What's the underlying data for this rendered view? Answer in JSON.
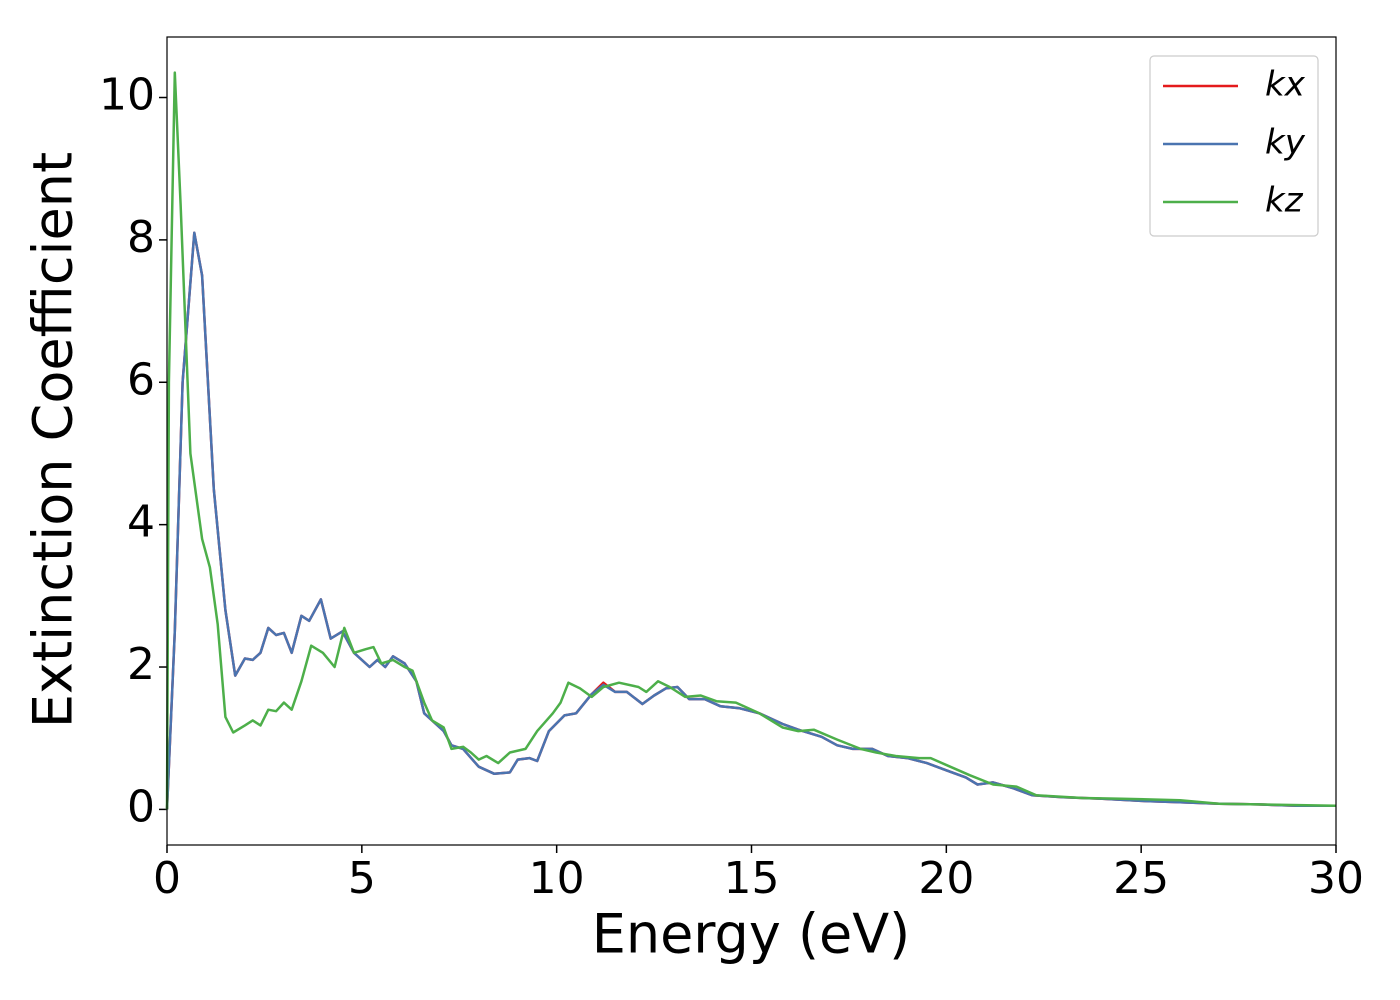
{
  "chart_data": {
    "type": "line",
    "xlabel": "Energy (eV)",
    "ylabel": "Extinction Coefficient",
    "xlim": [
      0,
      30
    ],
    "ylim": [
      -0.5,
      10.85
    ],
    "xticks": [
      0,
      5,
      10,
      15,
      20,
      25,
      30
    ],
    "yticks": [
      0,
      2,
      4,
      6,
      8,
      10
    ],
    "legend": "upper right",
    "series": [
      {
        "name": "kx",
        "color": "#e41a1c",
        "x": [
          0,
          0.2,
          0.4,
          0.7,
          0.9,
          1.2,
          1.5,
          1.75,
          2.0,
          2.2,
          2.4,
          2.6,
          2.8,
          3.0,
          3.2,
          3.45,
          3.65,
          3.95,
          4.2,
          4.5,
          4.8,
          5.2,
          5.4,
          5.6,
          5.8,
          6.1,
          6.4,
          6.6,
          6.9,
          7.1,
          7.3,
          7.6,
          8.0,
          8.4,
          8.8,
          9.0,
          9.3,
          9.5,
          9.8,
          10.2,
          10.5,
          10.9,
          11.2,
          11.5,
          11.8,
          12.2,
          12.5,
          12.8,
          13.1,
          13.4,
          13.8,
          14.2,
          14.7,
          15.2,
          15.8,
          16.2,
          16.8,
          17.2,
          17.6,
          18.1,
          18.5,
          19.0,
          19.5,
          20.0,
          20.5,
          20.8,
          21.2,
          21.7,
          22.2,
          23,
          24,
          25,
          26,
          27,
          28,
          29,
          30
        ],
        "values": [
          0,
          2.5,
          6,
          8.1,
          7.5,
          4.5,
          2.8,
          1.88,
          2.12,
          2.1,
          2.2,
          2.55,
          2.45,
          2.48,
          2.2,
          2.72,
          2.65,
          2.95,
          2.4,
          2.5,
          2.2,
          2.0,
          2.1,
          2.0,
          2.15,
          2.05,
          1.8,
          1.35,
          1.2,
          1.1,
          0.9,
          0.85,
          0.6,
          0.5,
          0.52,
          0.7,
          0.72,
          0.68,
          1.1,
          1.32,
          1.35,
          1.62,
          1.78,
          1.65,
          1.65,
          1.48,
          1.6,
          1.7,
          1.72,
          1.55,
          1.55,
          1.45,
          1.42,
          1.35,
          1.2,
          1.12,
          1.02,
          0.9,
          0.85,
          0.85,
          0.75,
          0.72,
          0.65,
          0.55,
          0.45,
          0.35,
          0.38,
          0.3,
          0.2,
          0.17,
          0.15,
          0.12,
          0.1,
          0.08,
          0.07,
          0.05,
          0.05
        ]
      },
      {
        "name": "ky",
        "color": "#4a74b0",
        "x": [
          0,
          0.2,
          0.4,
          0.7,
          0.9,
          1.2,
          1.5,
          1.75,
          2.0,
          2.2,
          2.4,
          2.6,
          2.8,
          3.0,
          3.2,
          3.45,
          3.65,
          3.95,
          4.2,
          4.5,
          4.8,
          5.2,
          5.4,
          5.6,
          5.8,
          6.1,
          6.4,
          6.6,
          6.9,
          7.1,
          7.3,
          7.6,
          8.0,
          8.4,
          8.8,
          9.0,
          9.3,
          9.5,
          9.8,
          10.2,
          10.5,
          10.9,
          11.2,
          11.5,
          11.8,
          12.2,
          12.5,
          12.8,
          13.1,
          13.4,
          13.8,
          14.2,
          14.7,
          15.2,
          15.8,
          16.2,
          16.8,
          17.2,
          17.6,
          18.1,
          18.5,
          19.0,
          19.5,
          20.0,
          20.5,
          20.8,
          21.2,
          21.7,
          22.2,
          23,
          24,
          25,
          26,
          27,
          28,
          29,
          30
        ],
        "values": [
          0,
          2.5,
          6,
          8.1,
          7.5,
          4.5,
          2.8,
          1.88,
          2.12,
          2.1,
          2.2,
          2.55,
          2.45,
          2.48,
          2.2,
          2.72,
          2.65,
          2.95,
          2.4,
          2.5,
          2.2,
          2.0,
          2.1,
          2.0,
          2.15,
          2.05,
          1.8,
          1.35,
          1.2,
          1.1,
          0.9,
          0.85,
          0.6,
          0.5,
          0.52,
          0.7,
          0.72,
          0.68,
          1.1,
          1.32,
          1.35,
          1.62,
          1.75,
          1.65,
          1.65,
          1.48,
          1.6,
          1.7,
          1.72,
          1.55,
          1.55,
          1.45,
          1.42,
          1.35,
          1.2,
          1.12,
          1.02,
          0.9,
          0.85,
          0.85,
          0.75,
          0.72,
          0.65,
          0.55,
          0.45,
          0.35,
          0.38,
          0.3,
          0.2,
          0.17,
          0.15,
          0.12,
          0.1,
          0.08,
          0.07,
          0.05,
          0.05
        ]
      },
      {
        "name": "kz",
        "color": "#4daf4a",
        "x": [
          0,
          0.05,
          0.2,
          0.35,
          0.6,
          0.9,
          1.1,
          1.3,
          1.5,
          1.7,
          2.0,
          2.2,
          2.4,
          2.6,
          2.8,
          3.0,
          3.2,
          3.45,
          3.7,
          4.0,
          4.3,
          4.55,
          4.8,
          5.1,
          5.3,
          5.5,
          5.8,
          6.1,
          6.3,
          6.6,
          6.8,
          7.1,
          7.3,
          7.6,
          7.8,
          8.0,
          8.2,
          8.5,
          8.8,
          9.2,
          9.5,
          9.9,
          10.1,
          10.3,
          10.6,
          10.9,
          11.2,
          11.6,
          12.1,
          12.3,
          12.6,
          12.9,
          13.3,
          13.7,
          14.1,
          14.6,
          15.2,
          15.8,
          16.2,
          16.6,
          17.2,
          17.8,
          18.2,
          18.7,
          19.3,
          19.6,
          20.1,
          20.6,
          21.2,
          21.8,
          22.3,
          23.5,
          24.5,
          26,
          27,
          28,
          30
        ],
        "values": [
          0,
          6,
          10.35,
          8.5,
          5,
          3.8,
          3.4,
          2.6,
          1.3,
          1.08,
          1.18,
          1.25,
          1.18,
          1.4,
          1.38,
          1.5,
          1.4,
          1.8,
          2.3,
          2.2,
          2.0,
          2.55,
          2.2,
          2.25,
          2.28,
          2.05,
          2.1,
          2.0,
          1.95,
          1.5,
          1.25,
          1.15,
          0.85,
          0.88,
          0.8,
          0.7,
          0.75,
          0.65,
          0.8,
          0.85,
          1.1,
          1.35,
          1.5,
          1.78,
          1.7,
          1.58,
          1.72,
          1.78,
          1.72,
          1.65,
          1.8,
          1.72,
          1.58,
          1.6,
          1.52,
          1.5,
          1.35,
          1.15,
          1.1,
          1.12,
          0.98,
          0.85,
          0.8,
          0.75,
          0.72,
          0.72,
          0.6,
          0.48,
          0.35,
          0.32,
          0.2,
          0.16,
          0.15,
          0.13,
          0.08,
          0.07,
          0.05
        ]
      }
    ]
  }
}
